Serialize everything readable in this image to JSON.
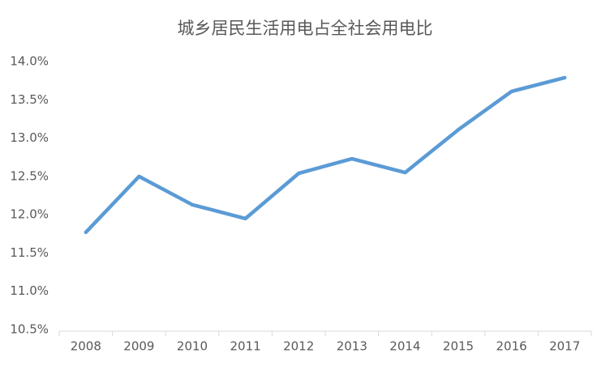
{
  "chart_data": {
    "type": "line",
    "title": "城乡居民生活用电占全社会用电比",
    "categories": [
      "2008",
      "2009",
      "2010",
      "2011",
      "2012",
      "2013",
      "2014",
      "2015",
      "2016",
      "2017"
    ],
    "values": [
      11.77,
      12.5,
      12.13,
      11.95,
      12.54,
      12.73,
      12.55,
      13.11,
      13.61,
      13.79
    ],
    "color": "#5b9bd5",
    "ylim": [
      10.5,
      14.0
    ],
    "yticks": [
      {
        "value": 10.5,
        "label": "10.5%"
      },
      {
        "value": 11.0,
        "label": "11.0%"
      },
      {
        "value": 11.5,
        "label": "11.5%"
      },
      {
        "value": 12.0,
        "label": "12.0%"
      },
      {
        "value": 12.5,
        "label": "12.5%"
      },
      {
        "value": 13.0,
        "label": "13.0%"
      },
      {
        "value": 13.5,
        "label": "13.5%"
      },
      {
        "value": 14.0,
        "label": "14.0%"
      }
    ],
    "grid": false
  }
}
